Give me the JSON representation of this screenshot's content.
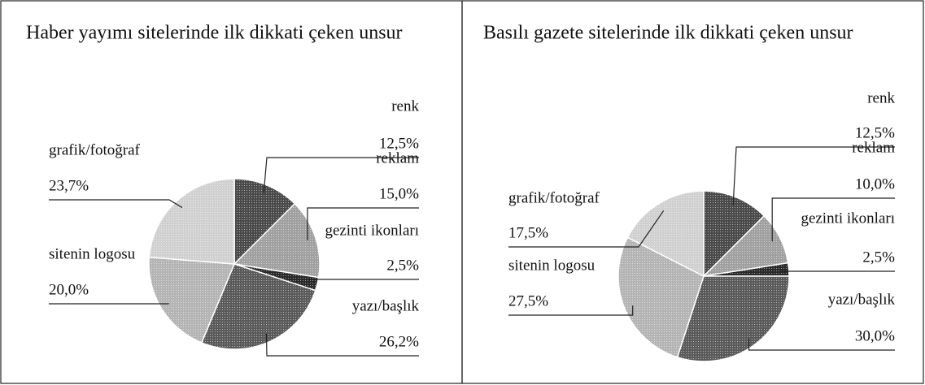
{
  "chart_data": [
    {
      "type": "pie",
      "title": "Haber yayımı sitelerinde ilk dikkati çeken unsur",
      "categories": [
        "renk",
        "reklam",
        "gezinti ikonları",
        "yazı/başlık",
        "sitenin logosu",
        "grafik/fotoğraf"
      ],
      "values": [
        12.5,
        15.0,
        2.5,
        26.2,
        20.0,
        23.7
      ],
      "value_labels": [
        "12,5%",
        "15,0%",
        "2,5%",
        "26,2%",
        "20,0%",
        "23,7%"
      ],
      "colors": [
        "#4a4a4a",
        "#a0a0a0",
        "#2a2a2a",
        "#5a5a5a",
        "#b4b4b4",
        "#d0d0d0"
      ]
    },
    {
      "type": "pie",
      "title": "Basılı gazete sitelerinde ilk dikkati çeken unsur",
      "categories": [
        "renk",
        "reklam",
        "gezinti ikonları",
        "yazı/başlık",
        "sitenin logosu",
        "grafik/fotoğraf"
      ],
      "values": [
        12.5,
        10.0,
        2.5,
        30.0,
        27.5,
        17.5
      ],
      "value_labels": [
        "12,5%",
        "10,0%",
        "2,5%",
        "30,0%",
        "27,5%",
        "17,5%"
      ],
      "colors": [
        "#4a4a4a",
        "#a0a0a0",
        "#2a2a2a",
        "#5a5a5a",
        "#b4b4b4",
        "#d0d0d0"
      ]
    }
  ]
}
